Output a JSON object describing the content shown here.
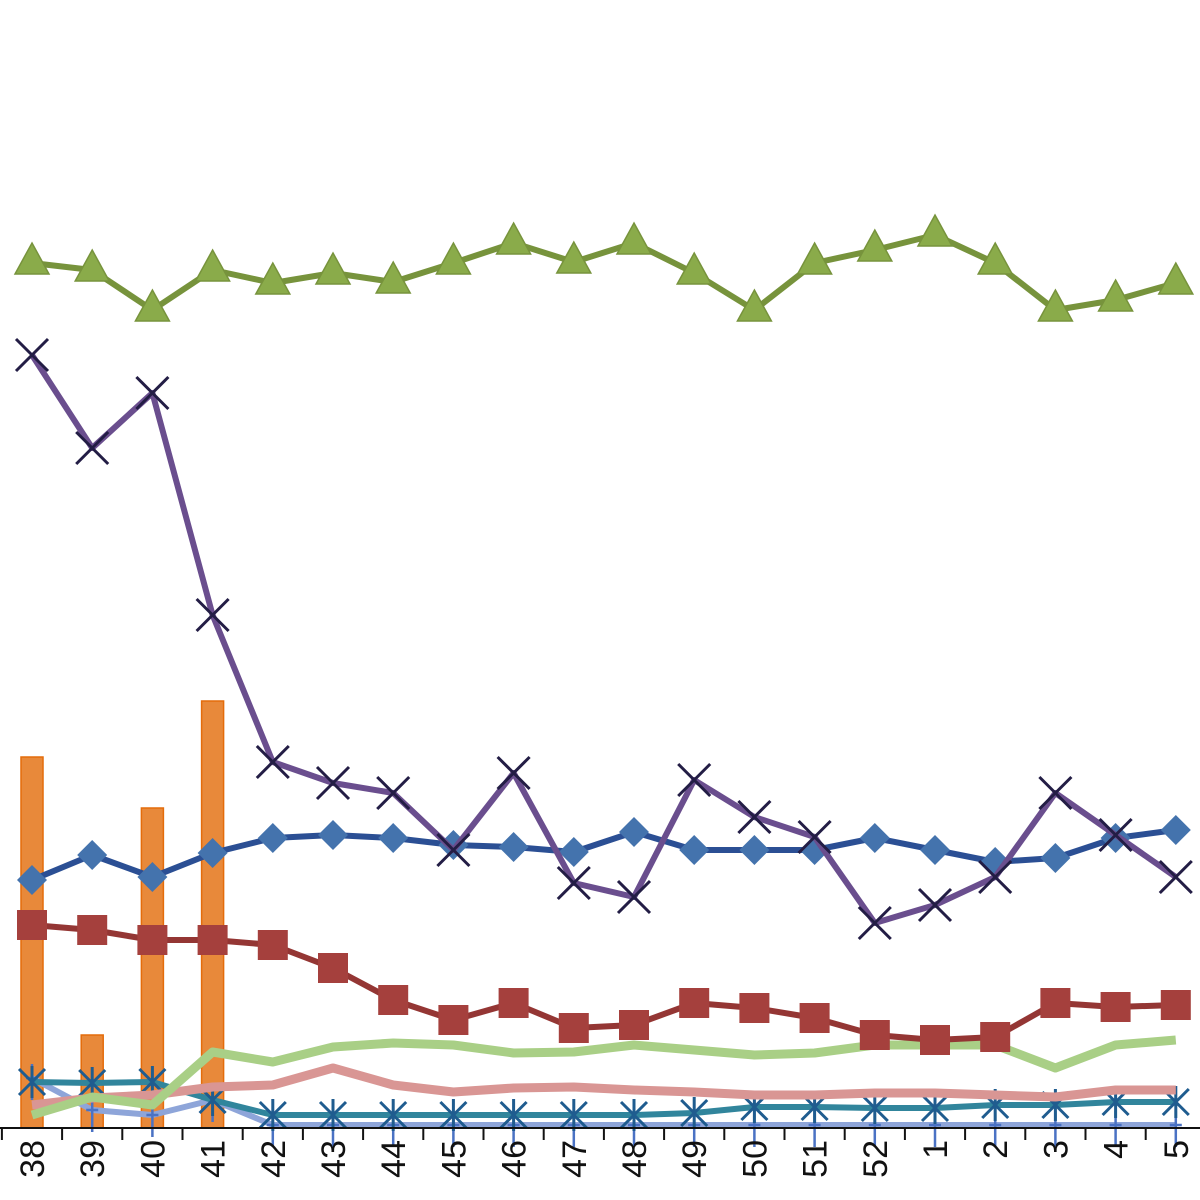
{
  "chart_data": {
    "type": "line",
    "title": "",
    "xlabel": "",
    "ylabel": "",
    "categories": [
      "38",
      "39",
      "40",
      "41",
      "42",
      "43",
      "44",
      "45",
      "46",
      "47",
      "48",
      "49",
      "50",
      "51",
      "52",
      "1",
      "2",
      "3",
      "4",
      "5"
    ],
    "ylim": [
      0,
      112.8
    ],
    "grid": false,
    "legend": "none",
    "bars": {
      "color": "#E8893A",
      "edge": "#E46C0A",
      "values": [
        37.1,
        9.3,
        32.0,
        42.7,
        null,
        null,
        null,
        null,
        null,
        null,
        null,
        null,
        null,
        null,
        null,
        null,
        null,
        null,
        null,
        null
      ]
    },
    "series": [
      {
        "marker": "triangle",
        "color": "#77933C",
        "marker_color": "#8AAB4A",
        "values": [
          86.5,
          85.8,
          81.8,
          85.8,
          84.5,
          85.5,
          84.6,
          86.5,
          88.5,
          86.6,
          88.5,
          85.5,
          81.8,
          86.5,
          87.8,
          89.3,
          86.5,
          81.8,
          82.8,
          84.5
        ]
      },
      {
        "marker": "x",
        "color": "#6A4E8E",
        "marker_color": "#231D45",
        "values": [
          77.3,
          68.0,
          73.5,
          51.3,
          36.6,
          34.5,
          33.5,
          27.8,
          35.5,
          24.5,
          23.1,
          34.8,
          31.1,
          29.1,
          20.5,
          22.3,
          25.1,
          33.5,
          29.3,
          25.1
        ]
      },
      {
        "marker": "diamond",
        "color": "#2B4F94",
        "marker_color": "#4473AD",
        "values": [
          24.8,
          27.3,
          25.1,
          27.5,
          29.0,
          29.3,
          29.0,
          28.3,
          28.1,
          27.6,
          29.6,
          27.8,
          27.8,
          27.8,
          29.0,
          27.8,
          26.6,
          27.0,
          29.0,
          29.8
        ]
      },
      {
        "marker": "square",
        "color": "#943634",
        "marker_color": "#A5403D",
        "values": [
          20.3,
          19.8,
          18.8,
          18.8,
          18.3,
          16.0,
          12.8,
          10.8,
          12.5,
          10.0,
          10.3,
          12.5,
          12.0,
          11.0,
          9.3,
          8.8,
          9.1,
          12.5,
          12.1,
          12.3
        ]
      },
      {
        "marker": "none",
        "color": "#A9CF86",
        "values": [
          1.3,
          3.1,
          2.3,
          7.6,
          6.6,
          8.1,
          8.5,
          8.3,
          7.5,
          7.6,
          8.3,
          7.8,
          7.3,
          7.5,
          8.3,
          8.3,
          8.3,
          6.0,
          8.3,
          8.8
        ]
      },
      {
        "marker": "none",
        "color": "#D99694",
        "values": [
          2.3,
          3.0,
          3.3,
          4.1,
          4.3,
          6.0,
          4.3,
          3.6,
          4.0,
          4.1,
          3.8,
          3.6,
          3.3,
          3.3,
          3.5,
          3.5,
          3.3,
          3.1,
          3.8,
          3.8
        ]
      },
      {
        "marker": "star",
        "color": "#31859C",
        "marker_color": "#1F5C8F",
        "values": [
          4.6,
          4.5,
          4.6,
          2.8,
          1.3,
          1.3,
          1.3,
          1.3,
          1.3,
          1.3,
          1.3,
          1.5,
          2.1,
          2.1,
          2.0,
          2.0,
          2.3,
          2.3,
          2.6,
          2.6
        ]
      },
      {
        "marker": "plus",
        "color": "#8EA5D9",
        "marker_color": "#4A72C4",
        "values": [
          5.0,
          1.8,
          1.3,
          2.8,
          0.3,
          0.3,
          0.3,
          0.3,
          0.3,
          0.3,
          0.3,
          0.3,
          0.3,
          0.3,
          0.3,
          0.3,
          0.3,
          0.3,
          0.3,
          0.3
        ]
      }
    ]
  }
}
